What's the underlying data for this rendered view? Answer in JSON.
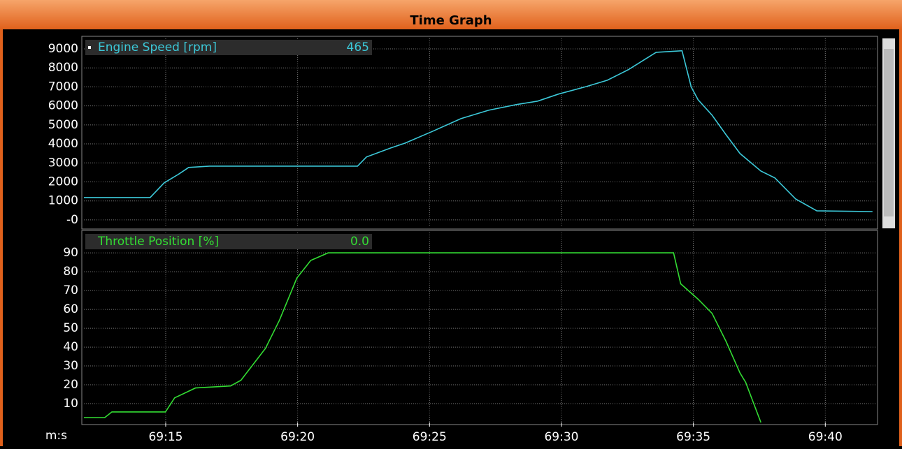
{
  "window_title": "Time Graph",
  "chart_data": [
    {
      "type": "line",
      "readout": "465",
      "x": [
        4151.9,
        4154.41,
        4154.94,
        4155.47,
        4155.87,
        4156.66,
        4162.27,
        4162.61,
        4163.54,
        4164.07,
        4165.13,
        4166.19,
        4167.24,
        4168.3,
        4169.1,
        4169.89,
        4170.95,
        4171.74,
        4172.53,
        4173.59,
        4174.57,
        4174.92,
        4175.18,
        4175.71,
        4176.24,
        4176.77,
        4177.56,
        4178.09,
        4178.88,
        4179.68,
        4181.79
      ],
      "series": [
        {
          "name": "Engine Speed [rpm]",
          "color": "#3cc8d8",
          "values": [
            1176,
            1176,
            1950,
            2390,
            2760,
            2830,
            2830,
            3310,
            3790,
            4040,
            4670,
            5330,
            5770,
            6070,
            6250,
            6620,
            7020,
            7350,
            7900,
            8820,
            8900,
            6990,
            6320,
            5510,
            4480,
            3490,
            2570,
            2210,
            1100,
            480,
            440
          ]
        }
      ],
      "xlim": [
        4151.9,
        4181.9
      ],
      "xticks": [
        4155,
        4160,
        4165,
        4170,
        4175,
        4180
      ],
      "ylim": [
        -370,
        9550
      ],
      "yticks": [
        {
          "value": 0,
          "label": "-0"
        },
        1000,
        2000,
        3000,
        4000,
        5000,
        6000,
        7000,
        8000,
        9000
      ],
      "grid": true
    },
    {
      "type": "line",
      "readout": "0.0",
      "xlabel": "m:s",
      "x": [
        4151.9,
        4152.69,
        4152.96,
        4154.99,
        4155.34,
        4156.13,
        4157.46,
        4157.85,
        4158.78,
        4159.31,
        4159.97,
        4160.5,
        4161.16,
        4174.25,
        4174.52,
        4175.18,
        4175.71,
        4176.24,
        4176.77,
        4176.98,
        4177.56
      ],
      "series": [
        {
          "name": "Throttle Position [%]",
          "color": "#33dd33",
          "values": [
            2.6,
            2.6,
            5.6,
            5.6,
            13.1,
            18.3,
            19.4,
            22.4,
            39.3,
            54.2,
            76.6,
            86,
            90,
            90,
            73.6,
            65.4,
            57.9,
            43,
            26.2,
            21.3,
            0
          ]
        }
      ],
      "xlim": [
        4151.9,
        4181.9
      ],
      "xticks": [
        {
          "value": 4155,
          "label": "69:15"
        },
        {
          "value": 4160,
          "label": "69:20"
        },
        {
          "value": 4165,
          "label": "69:25"
        },
        {
          "value": 4170,
          "label": "69:30"
        },
        {
          "value": 4175,
          "label": "69:35"
        },
        {
          "value": 4180,
          "label": "69:40"
        }
      ],
      "ylim": [
        0,
        100.8
      ],
      "yticks": [
        10,
        20,
        30,
        40,
        50,
        60,
        70,
        80,
        90
      ],
      "grid": true
    }
  ]
}
